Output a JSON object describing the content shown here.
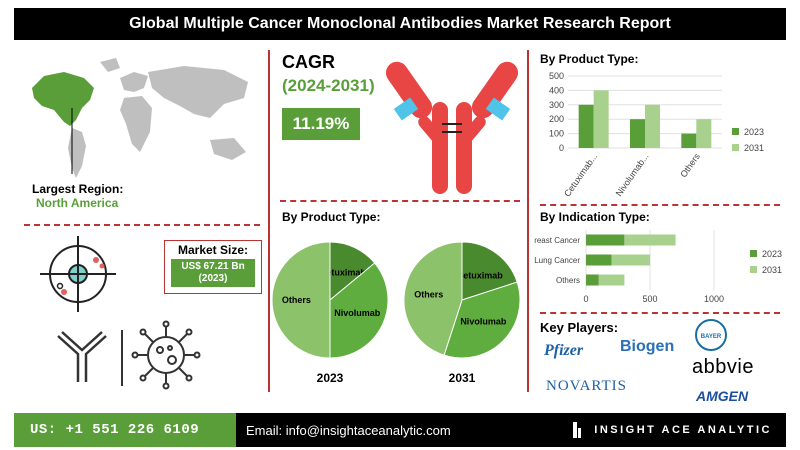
{
  "header": {
    "title": "Global Multiple Cancer Monoclonal Antibodies Market Research Report"
  },
  "region": {
    "label": "Largest Region:",
    "value": "North America"
  },
  "cagr": {
    "label": "CAGR",
    "period": "(2024-2031)",
    "value": "11.19%"
  },
  "market_size": {
    "label": "Market Size:",
    "value_line1": "US$ 67.21 Bn",
    "value_line2": "(2023)"
  },
  "product_bar": {
    "title": "By Product Type:",
    "chart_data": {
      "type": "bar",
      "categories": [
        "Cetuximab...",
        "Nivolumab...",
        "Others"
      ],
      "series": [
        {
          "name": "2023",
          "values": [
            300,
            200,
            100
          ],
          "color": "#5a9e3a"
        },
        {
          "name": "2031",
          "values": [
            400,
            300,
            200
          ],
          "color": "#a9d18e"
        }
      ],
      "ylim": [
        0,
        500
      ],
      "yticks": [
        "0",
        "100",
        "200",
        "300",
        "400",
        "500"
      ],
      "legend": "right"
    }
  },
  "indication_bar": {
    "title": "By Indication Type:",
    "chart_data": {
      "type": "bar",
      "orientation": "horizontal",
      "categories": [
        "Breast Cancer",
        "Lung Cancer",
        "Others"
      ],
      "series": [
        {
          "name": "2023",
          "values": [
            300,
            200,
            100
          ],
          "color": "#5a9e3a"
        },
        {
          "name": "2031",
          "values": [
            400,
            300,
            200
          ],
          "color": "#a9d18e"
        }
      ],
      "xlim": [
        0,
        1000
      ],
      "xticks": [
        "0",
        "500",
        "1000"
      ],
      "legend": "right"
    }
  },
  "pies": {
    "title": "By Product Type:",
    "chart_data": [
      {
        "type": "pie",
        "year": "2023",
        "labels": [
          "Cetuximab",
          "Nivolumab",
          "Others"
        ],
        "values": [
          14,
          36,
          50
        ],
        "colors": [
          "#4a8a2e",
          "#5fad3f",
          "#8cc26a"
        ]
      },
      {
        "type": "pie",
        "year": "2031",
        "labels": [
          "Cetuximab",
          "Nivolumab",
          "Others"
        ],
        "values": [
          20,
          35,
          45
        ],
        "colors": [
          "#4a8a2e",
          "#5fad3f",
          "#8cc26a"
        ]
      }
    ]
  },
  "players": {
    "title": "Key Players:",
    "logos": [
      "Pfizer",
      "Biogen",
      "BAYER",
      "abbvie",
      "NOVARTIS",
      "AMGEN"
    ]
  },
  "footer": {
    "phone": "US: +1 551 226 6109",
    "email": "Email: info@insightaceanalytic.com",
    "brand": "INSIGHT ACE ANALYTIC"
  }
}
